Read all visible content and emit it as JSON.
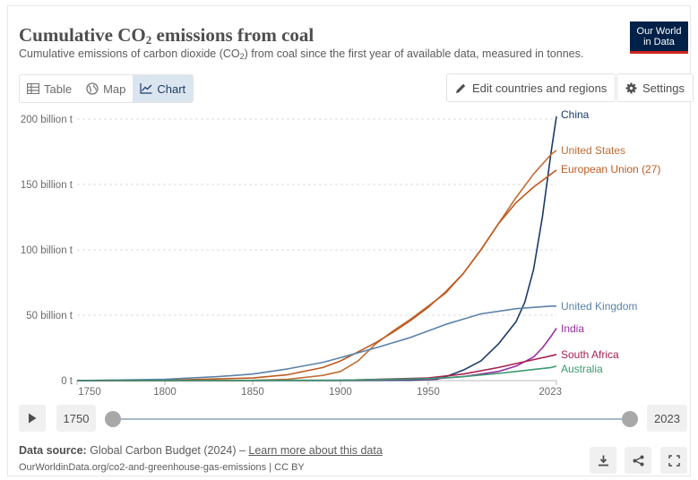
{
  "header": {
    "title_main": "Cumulative CO",
    "title_sub": "2",
    "title_tail": " emissions from coal",
    "subtitle_main": "Cumulative emissions of carbon dioxide (CO",
    "subtitle_sub": "2",
    "subtitle_tail": ") from coal since the first year of available data, measured in tonnes.",
    "logo_line1": "Our World",
    "logo_line2": "in Data"
  },
  "tabs": [
    {
      "label": "Table",
      "icon": "table-icon"
    },
    {
      "label": "Map",
      "icon": "globe-icon"
    },
    {
      "label": "Chart",
      "icon": "line-chart-icon",
      "active": true
    }
  ],
  "toolbar": {
    "edit_label": "Edit countries and regions",
    "settings_label": "Settings"
  },
  "timeline": {
    "start_year": "1750",
    "end_year": "2023"
  },
  "footer": {
    "source_label": "Data source:",
    "source_text": " Global Carbon Budget (2024) – ",
    "learn_more": "Learn more about this data",
    "url": "OurWorldinData.org/co2-and-greenhouse-gas-emissions | CC BY"
  },
  "chart_data": {
    "type": "line",
    "title": "Cumulative CO2 emissions from coal",
    "xlabel": "",
    "ylabel": "",
    "xlim": [
      1750,
      2023
    ],
    "ylim": [
      0,
      200
    ],
    "y_unit": "billion t",
    "x_ticks": [
      "1750",
      "1800",
      "1850",
      "1900",
      "1950",
      "2023"
    ],
    "x_tick_values": [
      1750,
      1800,
      1850,
      1900,
      1950,
      2023
    ],
    "y_ticks": [
      "0 t",
      "50 billion t",
      "100 billion t",
      "150 billion t",
      "200 billion t"
    ],
    "y_tick_values": [
      0,
      50,
      100,
      150,
      200
    ],
    "grid": true,
    "series": [
      {
        "name": "China",
        "color": "#1b3a68",
        "x": [
          1750,
          1900,
          1940,
          1955,
          1960,
          1970,
          1980,
          1990,
          2000,
          2005,
          2010,
          2015,
          2020,
          2023
        ],
        "values": [
          0,
          0,
          0.3,
          1,
          3,
          8,
          15,
          28,
          45,
          60,
          85,
          125,
          175,
          202
        ]
      },
      {
        "name": "United States",
        "color": "#c06c34",
        "x": [
          1750,
          1800,
          1850,
          1870,
          1890,
          1900,
          1910,
          1920,
          1930,
          1940,
          1950,
          1960,
          1970,
          1980,
          1990,
          2000,
          2010,
          2020,
          2023
        ],
        "values": [
          0,
          0,
          0.2,
          1,
          4,
          7,
          15,
          28,
          38,
          47,
          57,
          67,
          82,
          100,
          120,
          140,
          158,
          173,
          176
        ]
      },
      {
        "name": "European Union (27)",
        "color": "#bd5a21",
        "x": [
          1750,
          1800,
          1850,
          1870,
          1890,
          1900,
          1910,
          1920,
          1930,
          1940,
          1950,
          1960,
          1970,
          1980,
          1990,
          2000,
          2010,
          2020,
          2023
        ],
        "values": [
          0,
          0.3,
          2,
          4.5,
          10,
          15,
          22,
          29,
          37,
          46,
          56,
          68,
          82,
          100,
          120,
          136,
          148,
          158,
          161
        ]
      },
      {
        "name": "United Kingdom",
        "color": "#5b82a8",
        "x": [
          1750,
          1800,
          1830,
          1850,
          1870,
          1890,
          1900,
          1920,
          1940,
          1960,
          1980,
          2000,
          2020,
          2023
        ],
        "values": [
          0,
          1,
          3,
          5,
          9,
          14,
          17.5,
          25,
          33,
          43,
          51,
          55,
          57,
          57
        ]
      },
      {
        "name": "India",
        "color": "#9a2ea2",
        "x": [
          1750,
          1900,
          1950,
          1970,
          1990,
          2000,
          2010,
          2015,
          2020,
          2023
        ],
        "values": [
          0,
          0.2,
          1,
          3,
          7,
          11,
          18,
          25,
          34,
          40
        ]
      },
      {
        "name": "South Africa",
        "color": "#a7214f",
        "x": [
          1750,
          1900,
          1950,
          1970,
          1990,
          2000,
          2010,
          2020,
          2023
        ],
        "values": [
          0,
          0.2,
          2,
          5,
          10,
          13,
          16,
          19,
          20
        ]
      },
      {
        "name": "Australia",
        "color": "#3b9b6f",
        "x": [
          1750,
          1900,
          1950,
          1970,
          1990,
          2000,
          2010,
          2020,
          2023
        ],
        "values": [
          0,
          0.3,
          1.5,
          3,
          5.5,
          7,
          8.5,
          10,
          11
        ]
      }
    ],
    "label_offsets": {
      "China": 0,
      "United States": 0,
      "European Union (27)": 0,
      "United Kingdom": 0,
      "India": 0,
      "South Africa": 0,
      "Australia": 0
    }
  }
}
